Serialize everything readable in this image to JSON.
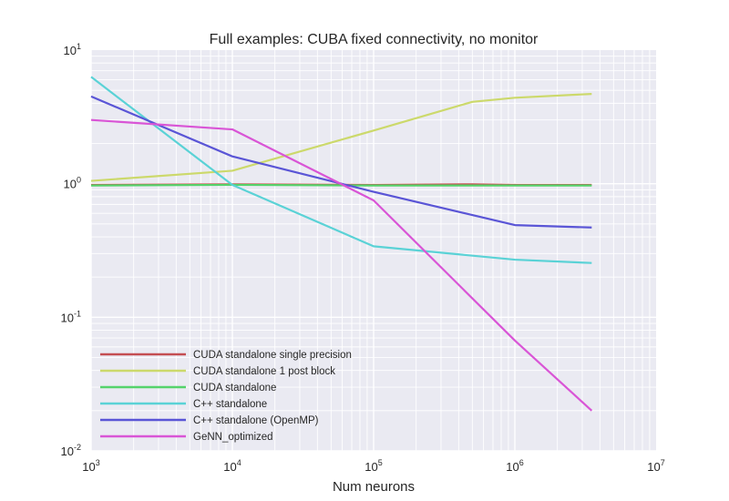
{
  "chart_data": {
    "type": "line",
    "title": "Full examples: CUBA fixed connectivity, no monitor",
    "xlabel": "Num neurons",
    "ylabel": "",
    "xscale": "log",
    "yscale": "log",
    "xlim": [
      1000,
      10000000
    ],
    "ylim": [
      0.01,
      10
    ],
    "grid": true,
    "legend_placement": "lower-left",
    "x_ticks": [
      {
        "value": 1000,
        "base": "10",
        "exp": "3"
      },
      {
        "value": 10000,
        "base": "10",
        "exp": "4"
      },
      {
        "value": 100000,
        "base": "10",
        "exp": "5"
      },
      {
        "value": 1000000,
        "base": "10",
        "exp": "6"
      },
      {
        "value": 10000000,
        "base": "10",
        "exp": "7"
      }
    ],
    "y_ticks": [
      {
        "value": 10,
        "base": "10",
        "exp": "1"
      },
      {
        "value": 1,
        "base": "10",
        "exp": "0"
      },
      {
        "value": 0.1,
        "base": "10",
        "exp": "-1"
      },
      {
        "value": 0.01,
        "base": "10",
        "exp": "-2"
      }
    ],
    "series": [
      {
        "name": "CUDA standalone single precision",
        "color": "#c44e52",
        "x": [
          1000,
          10000,
          100000,
          500000,
          1000000,
          3500000
        ],
        "y": [
          0.98,
          0.99,
          0.98,
          0.99,
          0.98,
          0.98
        ]
      },
      {
        "name": "CUDA standalone 1 post block",
        "color": "#ccd96b",
        "x": [
          1000,
          10000,
          100000,
          500000,
          1000000,
          3500000
        ],
        "y": [
          1.05,
          1.25,
          2.5,
          4.1,
          4.4,
          4.7
        ]
      },
      {
        "name": "CUDA standalone",
        "color": "#55d36b",
        "x": [
          1000,
          10000,
          100000,
          500000,
          1000000,
          3500000
        ],
        "y": [
          0.97,
          0.98,
          0.97,
          0.97,
          0.97,
          0.97
        ]
      },
      {
        "name": "C++ standalone",
        "color": "#5ad2d6",
        "x": [
          1000,
          10000,
          100000,
          1000000,
          3500000
        ],
        "y": [
          6.3,
          0.98,
          0.34,
          0.27,
          0.255
        ]
      },
      {
        "name": "C++ standalone (OpenMP)",
        "color": "#5a55d6",
        "x": [
          1000,
          10000,
          100000,
          1000000,
          3500000
        ],
        "y": [
          4.5,
          1.6,
          0.87,
          0.49,
          0.47
        ]
      },
      {
        "name": "GeNN_optimized",
        "color": "#d955d6",
        "x": [
          1000,
          10000,
          100000,
          1000000,
          3500000
        ],
        "y": [
          3.0,
          2.55,
          0.75,
          0.067,
          0.02
        ]
      }
    ]
  }
}
